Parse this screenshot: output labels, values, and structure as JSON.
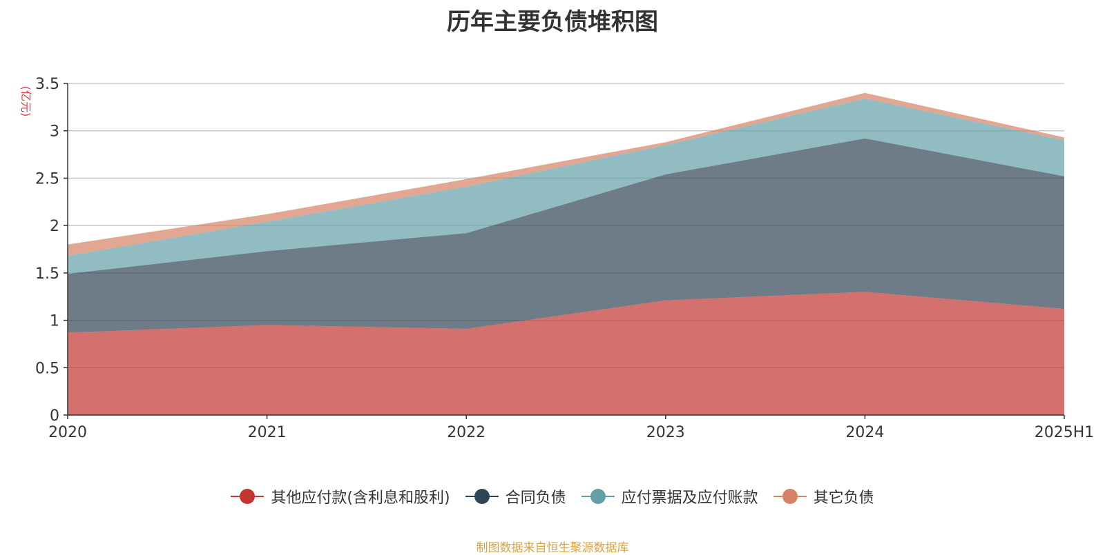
{
  "chart_data": {
    "type": "area",
    "title": "历年主要负债堆积图",
    "unit_label": "(亿元)",
    "categories": [
      "2020",
      "2021",
      "2022",
      "2023",
      "2024",
      "2025H1"
    ],
    "ylim": [
      0,
      3.5
    ],
    "yticks": [
      0,
      0.5,
      1,
      1.5,
      2,
      2.5,
      3,
      3.5
    ],
    "stacked": true,
    "grid": true,
    "legend_position": "bottom",
    "series": [
      {
        "name": "其他应付款(含利息和股利)",
        "color": "#c23531",
        "values": [
          0.87,
          0.95,
          0.91,
          1.21,
          1.3,
          1.12
        ]
      },
      {
        "name": "合同负债",
        "color": "#2f4554",
        "values": [
          0.62,
          0.78,
          1.01,
          1.33,
          1.62,
          1.4
        ]
      },
      {
        "name": "应付票据及应付账款",
        "color": "#61a0a8",
        "values": [
          0.19,
          0.31,
          0.49,
          0.31,
          0.42,
          0.38
        ]
      },
      {
        "name": "其它负债",
        "color": "#d48265",
        "values": [
          0.12,
          0.08,
          0.08,
          0.03,
          0.06,
          0.03
        ]
      }
    ]
  },
  "source_note": "制图数据来自恒生聚源数据库"
}
